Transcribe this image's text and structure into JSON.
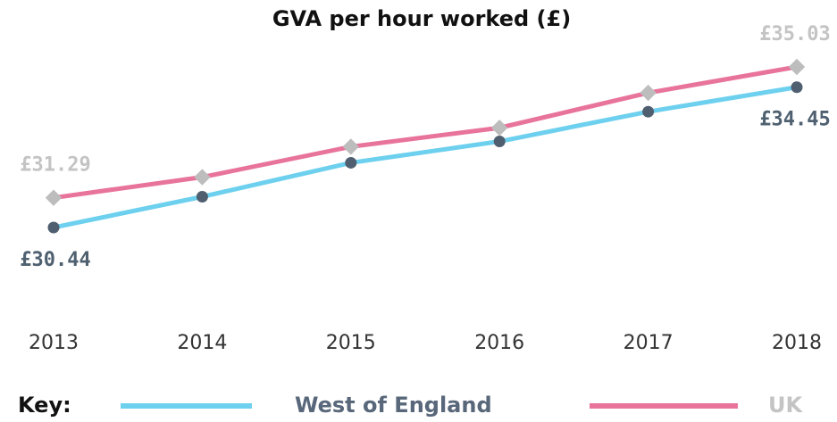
{
  "chart_data": {
    "type": "line",
    "title": "GVA per hour worked (£)",
    "categories": [
      "2013",
      "2014",
      "2015",
      "2016",
      "2017",
      "2018"
    ],
    "series": [
      {
        "name": "West of England",
        "color": "#6dd0ee",
        "marker_color": "#4f5f6f",
        "label_color": "#4f6170",
        "values": [
          30.44,
          31.32,
          32.29,
          32.9,
          33.75,
          34.45
        ],
        "value_labels": [
          "£30.44",
          null,
          null,
          null,
          null,
          "£34.45"
        ]
      },
      {
        "name": "UK",
        "color": "#e8739b",
        "marker_color": "#bdbdbd",
        "label_color": "#c4c4c4",
        "values": [
          31.29,
          31.88,
          32.75,
          33.29,
          34.29,
          35.03
        ],
        "value_labels": [
          "£31.29",
          null,
          null,
          null,
          null,
          "£35.03"
        ]
      }
    ],
    "legend_title": "Key:"
  }
}
